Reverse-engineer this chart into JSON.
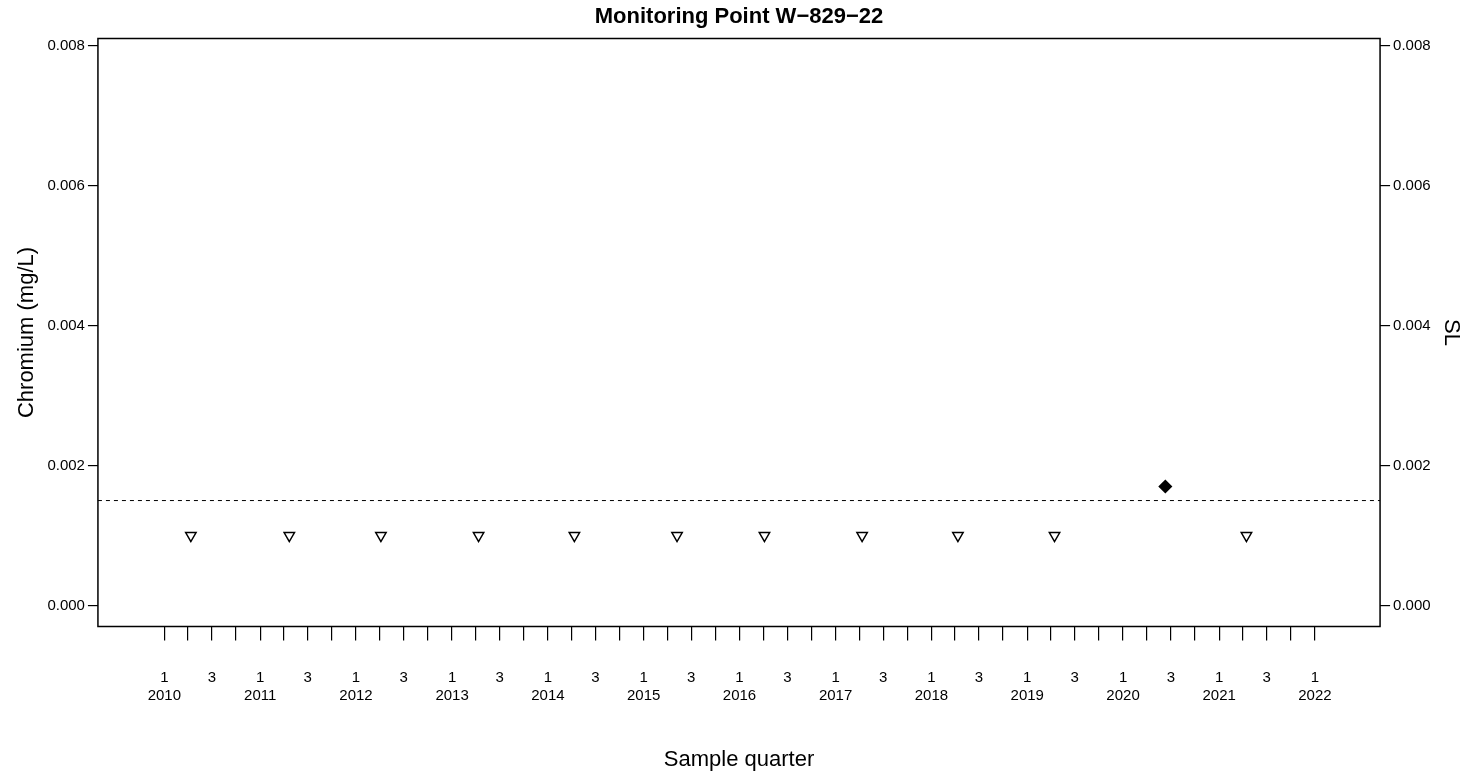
{
  "chart_data": {
    "type": "scatter",
    "title": "Monitoring Point W−829−22",
    "xlabel": "Sample quarter",
    "ylabel": "Chromium (mg/L)",
    "y2label": "SL",
    "series": [
      {
        "color": "#000000",
        "marker": "triangle",
        "x": [
          "2010-04-12",
          "2011-04-22",
          "2012-04-05",
          "2013-04-12",
          "2014-04-12",
          "2015-05-08",
          "2016-04-05",
          "2017-04-12",
          "2018-04-12",
          "2019-04-15",
          "2021-04-15"
        ],
        "values": [
          0.001,
          0.001,
          0.001,
          0.001,
          0.001,
          0.001,
          0.001,
          0.001,
          0.001,
          0.001,
          0.001
        ]
      },
      {
        "color": "#000000",
        "marker": "diamond",
        "x": [
          "2020-06-10"
        ],
        "values": [
          0.0017
        ]
      }
    ],
    "ref_lines": [
      {
        "axis": "y",
        "value": 0.0015,
        "line_style": "dashed",
        "color": "#000000"
      }
    ],
    "xlim": [
      "2009-04-23",
      "2022-09-06"
    ],
    "xticks": [
      {
        "value": "2010-01-01",
        "label": "1\n2010"
      },
      {
        "value": "2010-04-01",
        "label": null
      },
      {
        "value": "2010-07-01",
        "label": "3"
      },
      {
        "value": "2010-10-01",
        "label": null
      },
      {
        "value": "2011-01-01",
        "label": "1\n2011"
      },
      {
        "value": "2011-04-01",
        "label": null
      },
      {
        "value": "2011-07-01",
        "label": "3"
      },
      {
        "value": "2011-10-01",
        "label": null
      },
      {
        "value": "2012-01-01",
        "label": "1\n2012"
      },
      {
        "value": "2012-04-01",
        "label": null
      },
      {
        "value": "2012-07-01",
        "label": "3"
      },
      {
        "value": "2012-10-01",
        "label": null
      },
      {
        "value": "2013-01-01",
        "label": "1\n2013"
      },
      {
        "value": "2013-04-01",
        "label": null
      },
      {
        "value": "2013-07-01",
        "label": "3"
      },
      {
        "value": "2013-10-01",
        "label": null
      },
      {
        "value": "2014-01-01",
        "label": "1\n2014"
      },
      {
        "value": "2014-04-01",
        "label": null
      },
      {
        "value": "2014-07-01",
        "label": "3"
      },
      {
        "value": "2014-10-01",
        "label": null
      },
      {
        "value": "2015-01-01",
        "label": "1\n2015"
      },
      {
        "value": "2015-04-01",
        "label": null
      },
      {
        "value": "2015-07-01",
        "label": "3"
      },
      {
        "value": "2015-10-01",
        "label": null
      },
      {
        "value": "2016-01-01",
        "label": "1\n2016"
      },
      {
        "value": "2016-04-01",
        "label": null
      },
      {
        "value": "2016-07-01",
        "label": "3"
      },
      {
        "value": "2016-10-01",
        "label": null
      },
      {
        "value": "2017-01-01",
        "label": "1\n2017"
      },
      {
        "value": "2017-04-01",
        "label": null
      },
      {
        "value": "2017-07-01",
        "label": "3"
      },
      {
        "value": "2017-10-01",
        "label": null
      },
      {
        "value": "2018-01-01",
        "label": "1\n2018"
      },
      {
        "value": "2018-04-01",
        "label": null
      },
      {
        "value": "2018-07-01",
        "label": "3"
      },
      {
        "value": "2018-10-01",
        "label": null
      },
      {
        "value": "2019-01-01",
        "label": "1\n2019"
      },
      {
        "value": "2019-04-01",
        "label": null
      },
      {
        "value": "2019-07-01",
        "label": "3"
      },
      {
        "value": "2019-10-01",
        "label": null
      },
      {
        "value": "2020-01-01",
        "label": "1\n2020"
      },
      {
        "value": "2020-04-01",
        "label": null
      },
      {
        "value": "2020-07-01",
        "label": "3"
      },
      {
        "value": "2020-10-01",
        "label": null
      },
      {
        "value": "2021-01-01",
        "label": "1\n2021"
      },
      {
        "value": "2021-04-01",
        "label": null
      },
      {
        "value": "2021-07-01",
        "label": "3"
      },
      {
        "value": "2021-10-01",
        "label": null
      },
      {
        "value": "2022-01-01",
        "label": "1\n2022"
      }
    ],
    "ylim": [
      -0.0003,
      0.0081
    ],
    "yticks": [
      {
        "value": 0,
        "label": "0.000"
      },
      {
        "value": 0.002,
        "label": "0.002"
      },
      {
        "value": 0.004,
        "label": "0.004"
      },
      {
        "value": 0.006,
        "label": "0.006"
      },
      {
        "value": 0.008,
        "label": "0.008"
      }
    ],
    "y2lim": [
      -0.0003,
      0.0081
    ],
    "y2ticks": [
      {
        "value": 0,
        "label": "0.000"
      },
      {
        "value": 0.002,
        "label": "0.002"
      },
      {
        "value": 0.004,
        "label": "0.004"
      },
      {
        "value": 0.006,
        "label": "0.006"
      },
      {
        "value": 0.008,
        "label": "0.008"
      }
    ],
    "grid": false,
    "legend": false
  }
}
